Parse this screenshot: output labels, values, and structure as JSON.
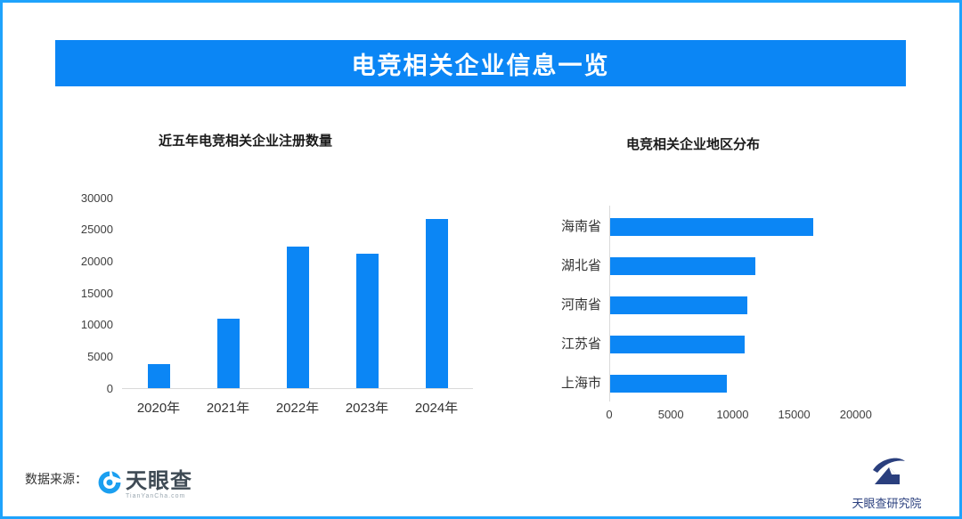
{
  "banner": {
    "title": "电竞相关企业信息一览"
  },
  "colors": {
    "border": "#1fa3fc",
    "banner_bg": "#0b86f5",
    "bar": "#0b86f5",
    "axis_line": "#d9d9d9",
    "tyc_icon_blue": "#1b9ff0",
    "institute_navy": "#2a3f7e"
  },
  "chart_data": [
    {
      "type": "bar",
      "title": "近五年电竞相关企业注册数量",
      "categories": [
        "2020年",
        "2021年",
        "2022年",
        "2023年",
        "2024年"
      ],
      "values": [
        3800,
        11000,
        22300,
        21100,
        26700
      ],
      "xlabel": "",
      "ylabel": "",
      "ylim": [
        0,
        30000
      ],
      "yticks": [
        0,
        5000,
        10000,
        15000,
        20000,
        25000,
        30000
      ],
      "grid": false,
      "legend": "none"
    },
    {
      "type": "bar-horizontal",
      "title": "电竞相关企业地区分布",
      "categories": [
        "海南省",
        "湖北省",
        "河南省",
        "江苏省",
        "上海市"
      ],
      "values": [
        16500,
        11800,
        11100,
        10900,
        9500
      ],
      "xlabel": "",
      "ylabel": "",
      "xlim": [
        0,
        20000
      ],
      "xticks": [
        0,
        5000,
        10000,
        15000,
        20000
      ],
      "grid": false,
      "legend": "none"
    }
  ],
  "footer": {
    "source_label": "数据来源：",
    "tianyancha_name": "天眼查",
    "tianyancha_sub": "TianYanCha.com",
    "institute_name": "天眼查研究院"
  }
}
